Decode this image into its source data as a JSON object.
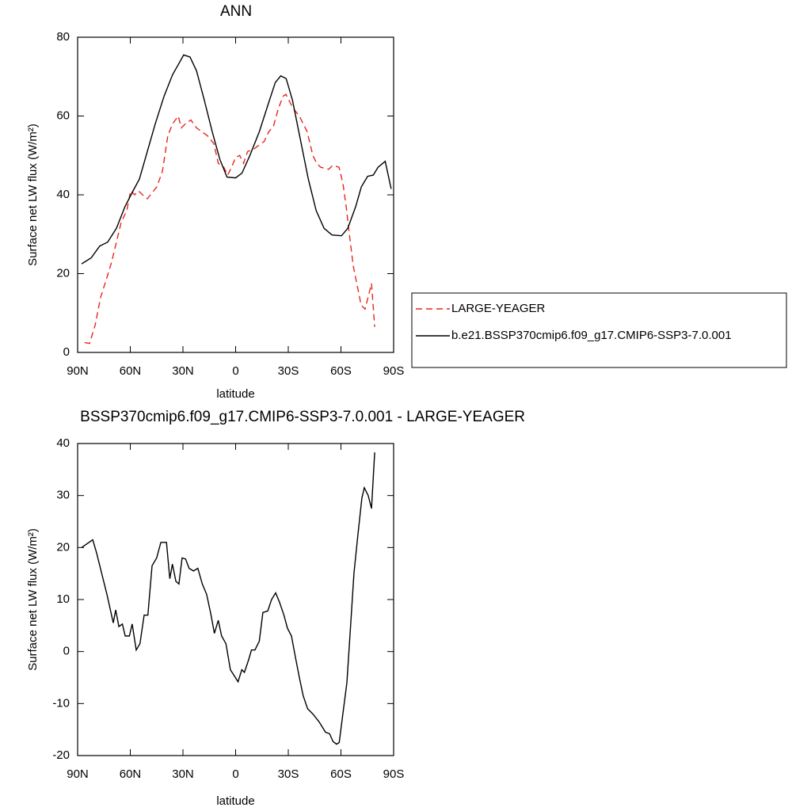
{
  "chart_data": [
    {
      "type": "line",
      "title": "ANN",
      "x_label": "latitude",
      "y_label": "Surface net LW flux (W/m²)",
      "xlim": [
        90,
        -90
      ],
      "xticks": [
        {
          "value": 90,
          "label": "90N"
        },
        {
          "value": 60,
          "label": "60N"
        },
        {
          "value": 30,
          "label": "30N"
        },
        0,
        {
          "value": -30,
          "label": "30S"
        },
        {
          "value": -60,
          "label": "60S"
        },
        {
          "value": -90,
          "label": "90S"
        }
      ],
      "ylim": [
        0,
        80
      ],
      "yticks": [
        0,
        20,
        40,
        60,
        80
      ],
      "legend": "right",
      "series": [
        {
          "name": "LARGE-YEAGER",
          "color": "#e8261f",
          "dash": true,
          "x": [
            86,
            83.2,
            80,
            76.9,
            73.3,
            70.6,
            67.9,
            65.2,
            62,
            59.8,
            57.5,
            55.3,
            53,
            50.3,
            48.5,
            44.9,
            41.7,
            38.6,
            35.9,
            32.7,
            30.9,
            28.6,
            25.5,
            22.3,
            19.2,
            16,
            12.4,
            9.9,
            6.7,
            4.5,
            2.3,
            0,
            -2.3,
            -4.5,
            -6.8,
            -10,
            -13,
            -16.2,
            -18.9,
            -21.6,
            -24.4,
            -27,
            -28.6,
            -32.7,
            -36.3,
            -40.8,
            -44,
            -46.2,
            -48.5,
            -53,
            -55.3,
            -58.9,
            -61.1,
            -63,
            -64.8,
            -67,
            -69.7,
            -71.5,
            -73.7,
            -76,
            -77.4,
            -79.2
          ],
          "values": [
            2.5,
            2.3,
            7,
            14,
            19,
            23,
            28,
            33,
            36,
            41,
            40,
            41,
            40,
            39,
            40,
            42,
            46,
            55,
            58,
            60,
            57,
            58,
            59,
            57,
            56,
            55,
            53,
            48,
            47,
            45,
            47,
            49.5,
            50,
            48,
            51,
            51.5,
            52.5,
            53.5,
            56,
            57.5,
            62,
            65,
            65.5,
            62,
            60,
            56,
            50,
            48,
            47,
            46.5,
            47.5,
            47,
            43,
            37,
            30,
            22,
            16,
            12,
            11,
            15,
            17.5,
            6.5
          ]
        },
        {
          "name": "b.e21.BSSP370cmip6.f09_g17.CMIP6-SSP3-7.0.001",
          "color": "#000000",
          "dash": false,
          "x": [
            87.7,
            82.3,
            77.4,
            72.9,
            67.9,
            63,
            58.4,
            54.8,
            50.3,
            45.8,
            40.8,
            35.9,
            32.7,
            29.6,
            26,
            22.3,
            17.8,
            13.3,
            9,
            4.9,
            0,
            -3.6,
            -8.1,
            -13.5,
            -18.9,
            -22.6,
            -25.7,
            -28.8,
            -32.4,
            -36.9,
            -41.4,
            -45.9,
            -50.4,
            -54.9,
            -60.3,
            -63.9,
            -68.4,
            -71.6,
            -75.2,
            -78.4,
            -81.1,
            -85.2,
            -88.6
          ],
          "values": [
            22.5,
            24,
            27,
            28,
            31.5,
            37,
            41,
            44,
            51,
            58,
            65,
            70.5,
            73,
            75.5,
            75,
            71.5,
            64,
            56,
            49,
            44.5,
            44.3,
            45.5,
            50,
            56,
            63.5,
            68.5,
            70.2,
            69.5,
            64,
            54,
            44,
            36,
            31.5,
            29.8,
            29.6,
            31.5,
            37,
            42,
            44.7,
            45,
            47,
            48.5,
            41.5
          ]
        }
      ]
    },
    {
      "type": "line",
      "title": "BSSP370cmip6.f09_g17.CMIP6-SSP3-7.0.001 - LARGE-YEAGER",
      "x_label": "latitude",
      "y_label": "Surface net LW flux (W/m²)",
      "xlim": [
        90,
        -90
      ],
      "xticks": [
        {
          "value": 90,
          "label": "90N"
        },
        {
          "value": 60,
          "label": "60N"
        },
        {
          "value": 30,
          "label": "30N"
        },
        0,
        {
          "value": -30,
          "label": "30S"
        },
        {
          "value": -60,
          "label": "60S"
        },
        {
          "value": -90,
          "label": "90S"
        }
      ],
      "ylim": [
        -20,
        40
      ],
      "yticks": [
        -20,
        -10,
        0,
        10,
        20,
        30,
        40
      ],
      "series": [
        {
          "color": "#000000",
          "dash": false,
          "x": [
            87.7,
            81.4,
            79.2,
            73.3,
            69.7,
            68.3,
            66.5,
            64.5,
            62.9,
            60.5,
            58.9,
            56.6,
            54.5,
            52.1,
            50,
            47.6,
            45,
            42.6,
            39.4,
            37.5,
            36,
            34,
            32.3,
            30.5,
            28.5,
            26.5,
            24,
            21.5,
            19,
            16.5,
            14,
            12.1,
            9.9,
            8,
            5.5,
            3,
            -1.4,
            -3.5,
            -5,
            -7.5,
            -9,
            -11,
            -13.5,
            -15.5,
            -18.3,
            -20.5,
            -22.8,
            -25,
            -27.5,
            -29.5,
            -31.8,
            -34,
            -36.3,
            -38.5,
            -41,
            -44,
            -47.5,
            -51.2,
            -53.5,
            -55.5,
            -57.5,
            -59,
            -61.1,
            -63.4,
            -65.5,
            -67.4,
            -69.5,
            -71.9,
            -73.3,
            -75.5,
            -77.4,
            -79.2
          ],
          "values": [
            20,
            21.5,
            19,
            11,
            5.5,
            8,
            4.8,
            5.3,
            3,
            3,
            5.3,
            0.3,
            1.5,
            7,
            7,
            16.5,
            18,
            21,
            21,
            14,
            16.8,
            13.5,
            13,
            18,
            17.8,
            16,
            15.5,
            16,
            13,
            11,
            7,
            3.5,
            6,
            3,
            1.5,
            -3.5,
            -5.8,
            -3.5,
            -4,
            -1.5,
            0.3,
            0.3,
            2,
            7.5,
            7.8,
            10,
            11.3,
            9.5,
            7,
            4.5,
            3,
            -1,
            -5,
            -8.5,
            -11,
            -12,
            -13.5,
            -15.5,
            -15.8,
            -17.3,
            -17.8,
            -17.5,
            -12,
            -6,
            5,
            15,
            22,
            29.5,
            31.5,
            30,
            27.5,
            38.3
          ]
        }
      ]
    }
  ]
}
